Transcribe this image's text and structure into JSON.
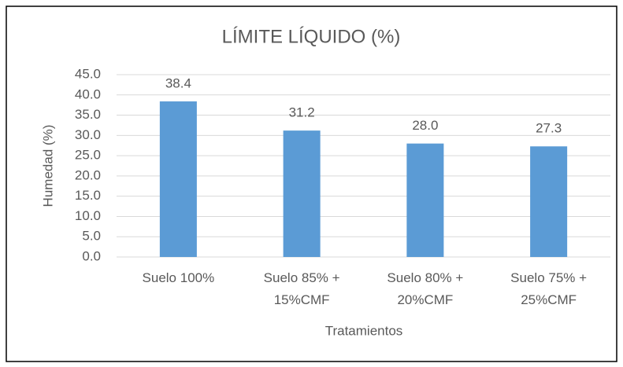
{
  "chart_data": {
    "type": "bar",
    "title": "LÍMITE LÍQUIDO (%)",
    "y_label": "Humedad  (%)",
    "x_label": "Tratamientos",
    "categories": [
      "Suelo 100%",
      "Suelo 85% +\n15%CMF",
      "Suelo 80% +\n20%CMF",
      "Suelo 75% +\n25%CMF"
    ],
    "values": [
      38.4,
      31.2,
      28.0,
      27.3
    ],
    "value_labels": [
      "38.4",
      "31.2",
      "28.0",
      "27.3"
    ],
    "color": "#5b9bd5",
    "ylim": [
      0,
      45
    ],
    "yticks": [
      {
        "value": 0,
        "label": "0.0"
      },
      {
        "value": 5,
        "label": "5.0"
      },
      {
        "value": 10,
        "label": "10.0"
      },
      {
        "value": 15,
        "label": "15.0"
      },
      {
        "value": 20,
        "label": "20.0"
      },
      {
        "value": 25,
        "label": "25.0"
      },
      {
        "value": 30,
        "label": "30.0"
      },
      {
        "value": 35,
        "label": "35.0"
      },
      {
        "value": 40,
        "label": "40.0"
      },
      {
        "value": 45,
        "label": "45.0"
      }
    ],
    "grid": true
  }
}
